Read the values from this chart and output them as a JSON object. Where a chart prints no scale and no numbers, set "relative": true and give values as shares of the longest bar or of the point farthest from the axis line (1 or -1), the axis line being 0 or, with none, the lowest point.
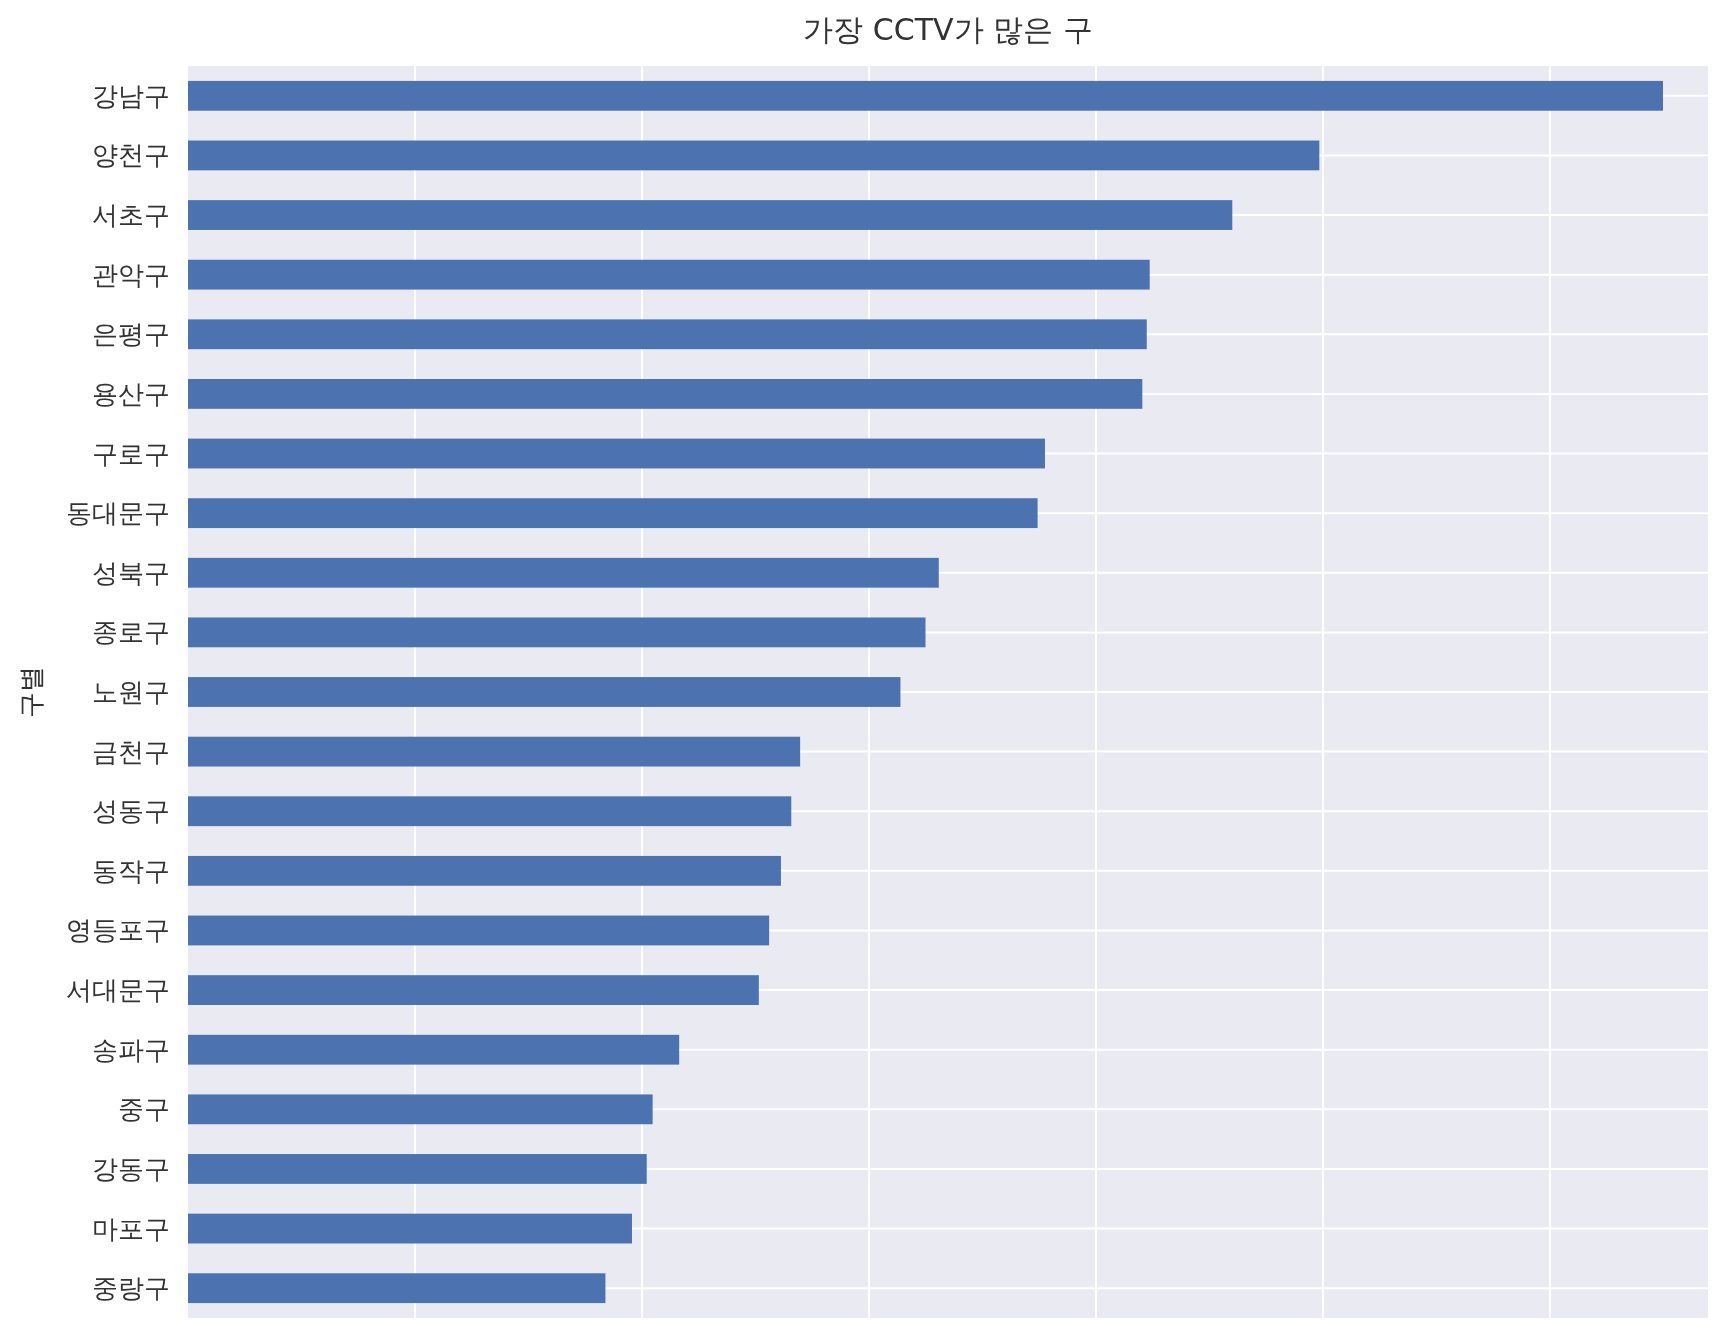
{
  "chart_data": {
    "type": "bar",
    "title": "가장 CCTV가 많은 구",
    "ylabel": "구별",
    "orientation": "horizontal",
    "relative": true,
    "grid": true,
    "color": "#4c72b0",
    "categories": [
      "강남구",
      "양천구",
      "서초구",
      "관악구",
      "은평구",
      "용산구",
      "구로구",
      "동대문구",
      "성북구",
      "종로구",
      "노원구",
      "금천구",
      "성동구",
      "동작구",
      "영등포구",
      "서대문구",
      "송파구",
      "중구",
      "강동구",
      "마포구",
      "중랑구"
    ],
    "values": [
      1,
      0.767,
      0.708,
      0.652,
      0.65,
      0.647,
      0.581,
      0.576,
      0.509,
      0.5,
      0.483,
      0.415,
      0.409,
      0.402,
      0.394,
      0.387,
      0.333,
      0.315,
      0.311,
      0.301,
      0.283
    ]
  }
}
